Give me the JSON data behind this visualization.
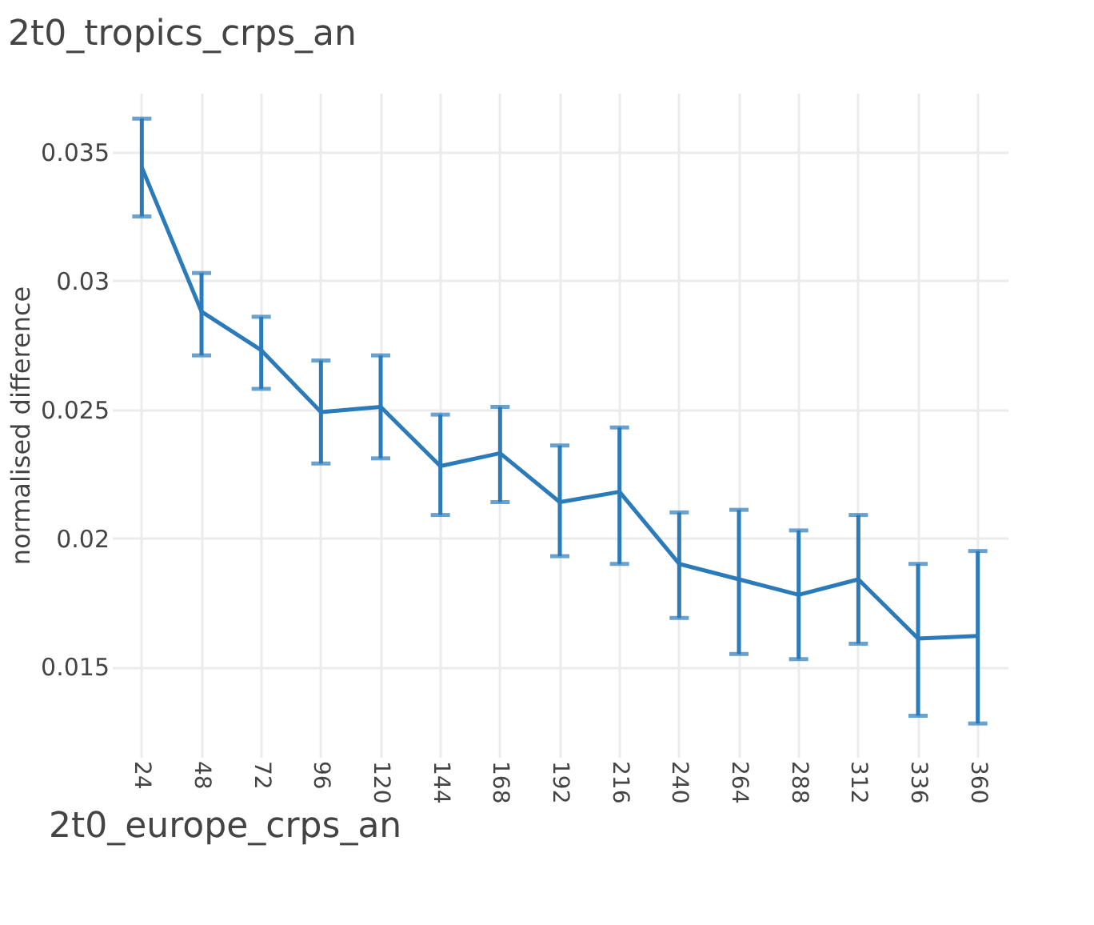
{
  "chart_data": {
    "type": "line",
    "title": "2t0_tropics_crps_an",
    "xlabel": "2t0_europe_crps_an",
    "ylabel": "normalised difference",
    "categories": [
      "24",
      "48",
      "72",
      "96",
      "120",
      "144",
      "168",
      "192",
      "216",
      "240",
      "264",
      "288",
      "312",
      "336",
      "360"
    ],
    "series": [
      {
        "color": "#2b7bba",
        "values": [
          0.0344,
          0.0288,
          0.0273,
          0.0249,
          0.0251,
          0.0228,
          0.0233,
          0.0214,
          0.0218,
          0.019,
          0.0184,
          0.0178,
          0.0184,
          0.0161,
          0.0162
        ],
        "errors": [
          [
            0.0325,
            0.0363
          ],
          [
            0.0271,
            0.0303
          ],
          [
            0.0258,
            0.0286
          ],
          [
            0.0229,
            0.0269
          ],
          [
            0.0231,
            0.0271
          ],
          [
            0.0209,
            0.0248
          ],
          [
            0.0214,
            0.0251
          ],
          [
            0.0193,
            0.0236
          ],
          [
            0.019,
            0.0243
          ],
          [
            0.0169,
            0.021
          ],
          [
            0.0155,
            0.0211
          ],
          [
            0.0153,
            0.0203
          ],
          [
            0.0159,
            0.0209
          ],
          [
            0.0131,
            0.019
          ],
          [
            0.0128,
            0.0195
          ]
        ]
      }
    ],
    "ylim": [
      0.0115,
      0.0373
    ],
    "yticks": [
      0.015,
      0.02,
      0.025,
      0.03,
      0.035
    ],
    "grid": true,
    "marker": "none",
    "line_style": "solid"
  }
}
